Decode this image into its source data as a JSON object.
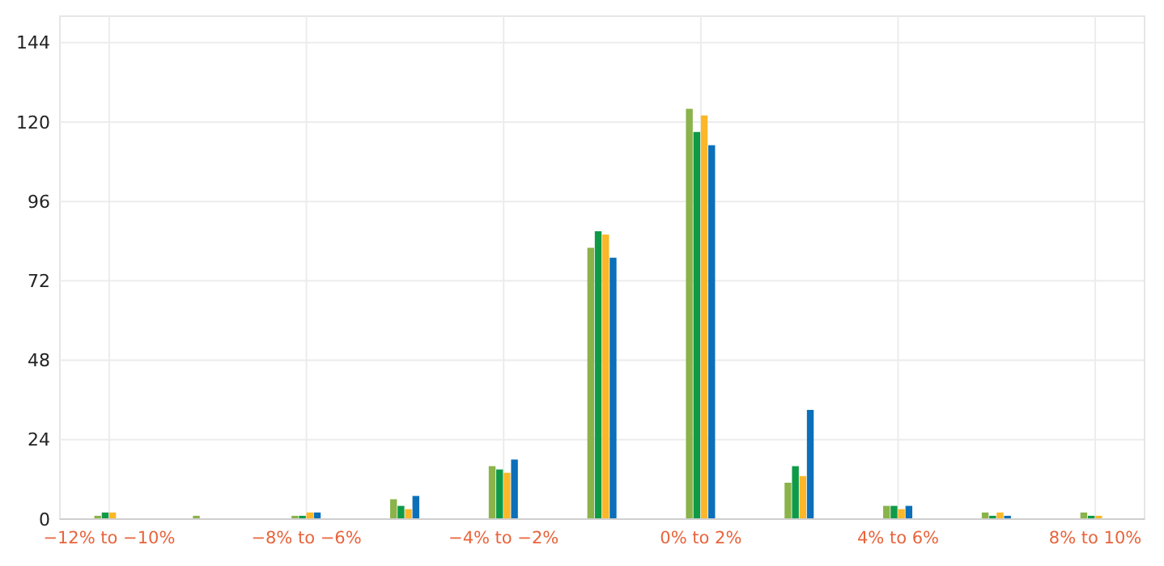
{
  "chart_data": {
    "type": "bar",
    "categories": [
      "−12% to −10%",
      null,
      "−8% to −6%",
      null,
      "−4% to −2%",
      null,
      "0% to 2%",
      null,
      "4% to 6%",
      null,
      "8% to 10%"
    ],
    "series": [
      {
        "color": "#8ab34a",
        "values": [
          1,
          1,
          1,
          6,
          16,
          82,
          124,
          11,
          4,
          2,
          2
        ]
      },
      {
        "color": "#0f9a48",
        "values": [
          2,
          0,
          1,
          4,
          15,
          87,
          117,
          16,
          4,
          1,
          1
        ]
      },
      {
        "color": "#fbb728",
        "values": [
          2,
          0,
          2,
          3,
          14,
          86,
          122,
          13,
          3,
          2,
          1
        ]
      },
      {
        "color": "#0b6fba",
        "values": [
          0,
          0,
          2,
          7,
          18,
          79,
          113,
          33,
          4,
          1,
          0
        ]
      }
    ],
    "ylim": [
      0,
      152
    ],
    "yticks": [
      0,
      24,
      48,
      72,
      96,
      120,
      144
    ],
    "grid": true
  }
}
